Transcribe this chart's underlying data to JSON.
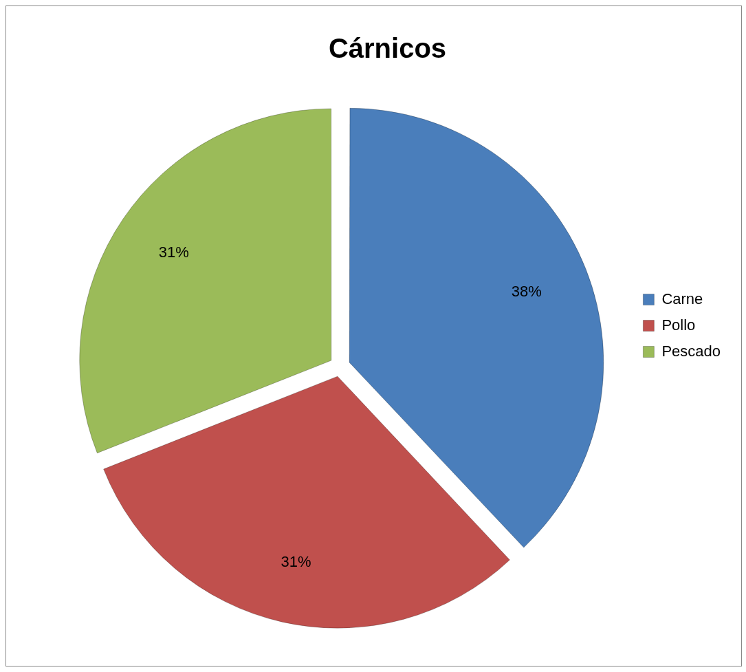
{
  "chart_data": {
    "type": "pie",
    "title": "Cárnicos",
    "categories": [
      "Carne",
      "Pollo",
      "Pescado"
    ],
    "values": [
      38,
      31,
      31
    ],
    "colors": [
      "#4a7ebb",
      "#c0504d",
      "#9bbb59"
    ],
    "value_labels": [
      "38%",
      "31%",
      "31%"
    ],
    "legend": "right"
  }
}
